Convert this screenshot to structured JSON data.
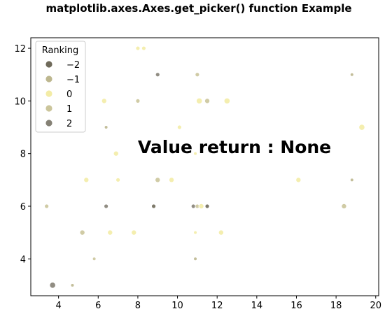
{
  "chart_data": {
    "type": "scatter",
    "title": "matplotlib.axes.Axes.get_picker() function Example",
    "annotation": "Value return : None",
    "xlabel": "",
    "ylabel": "",
    "xlim": [
      2.6,
      20.15
    ],
    "ylim": [
      2.6,
      12.4
    ],
    "x_ticks": [
      4,
      6,
      8,
      10,
      12,
      14,
      16,
      18,
      20
    ],
    "y_ticks": [
      4,
      6,
      8,
      10,
      12
    ],
    "grid": false,
    "legend": {
      "title": "Ranking",
      "placement": "top-left",
      "entries": [
        {
          "label": "−2",
          "color": "#6f6a5a"
        },
        {
          "label": "−1",
          "color": "#bdb78f"
        },
        {
          "label": "0",
          "color": "#f3eca6"
        },
        {
          "label": "1",
          "color": "#cbc59b"
        },
        {
          "label": "2",
          "color": "#858175"
        }
      ]
    },
    "points": [
      {
        "x": 3.7,
        "y": 3.0,
        "rank": 2,
        "size": 7
      },
      {
        "x": 4.7,
        "y": 3.0,
        "rank": -1,
        "size": 4
      },
      {
        "x": 5.8,
        "y": 4.0,
        "rank": 1,
        "size": 4
      },
      {
        "x": 5.2,
        "y": 5.0,
        "rank": 1,
        "size": 6
      },
      {
        "x": 6.6,
        "y": 5.0,
        "rank": 0,
        "size": 6
      },
      {
        "x": 7.8,
        "y": 5.0,
        "rank": 0,
        "size": 6
      },
      {
        "x": 10.9,
        "y": 5.0,
        "rank": 0,
        "size": 4
      },
      {
        "x": 12.2,
        "y": 5.0,
        "rank": 0,
        "size": 6
      },
      {
        "x": 10.9,
        "y": 4.0,
        "rank": -1,
        "size": 4
      },
      {
        "x": 3.4,
        "y": 6.0,
        "rank": 1,
        "size": 5
      },
      {
        "x": 6.4,
        "y": 6.0,
        "rank": 2,
        "size": 5
      },
      {
        "x": 8.8,
        "y": 6.0,
        "rank": -2,
        "size": 5
      },
      {
        "x": 10.8,
        "y": 6.0,
        "rank": 2,
        "size": 5
      },
      {
        "x": 11.0,
        "y": 6.0,
        "rank": 1,
        "size": 5
      },
      {
        "x": 11.2,
        "y": 6.0,
        "rank": 0,
        "size": 6
      },
      {
        "x": 11.5,
        "y": 6.0,
        "rank": -2,
        "size": 5
      },
      {
        "x": 18.4,
        "y": 6.0,
        "rank": 1,
        "size": 6
      },
      {
        "x": 5.4,
        "y": 7.0,
        "rank": 0,
        "size": 6
      },
      {
        "x": 7.0,
        "y": 7.0,
        "rank": 0,
        "size": 5
      },
      {
        "x": 9.0,
        "y": 7.0,
        "rank": 1,
        "size": 6
      },
      {
        "x": 9.7,
        "y": 7.0,
        "rank": 0,
        "size": 6
      },
      {
        "x": 16.1,
        "y": 7.0,
        "rank": 0,
        "size": 6
      },
      {
        "x": 18.8,
        "y": 7.0,
        "rank": -1,
        "size": 4
      },
      {
        "x": 6.9,
        "y": 8.0,
        "rank": 0,
        "size": 6
      },
      {
        "x": 10.9,
        "y": 8.0,
        "rank": 0,
        "size": 4
      },
      {
        "x": 6.4,
        "y": 9.0,
        "rank": -1,
        "size": 4
      },
      {
        "x": 10.1,
        "y": 9.0,
        "rank": 0,
        "size": 5
      },
      {
        "x": 19.3,
        "y": 9.0,
        "rank": 0,
        "size": 7
      },
      {
        "x": 6.3,
        "y": 10.0,
        "rank": 0,
        "size": 6
      },
      {
        "x": 8.0,
        "y": 10.0,
        "rank": 1,
        "size": 5
      },
      {
        "x": 11.1,
        "y": 10.0,
        "rank": 0,
        "size": 7
      },
      {
        "x": 11.5,
        "y": 10.0,
        "rank": 1,
        "size": 6
      },
      {
        "x": 12.5,
        "y": 10.0,
        "rank": 0,
        "size": 7
      },
      {
        "x": 9.0,
        "y": 11.0,
        "rank": 2,
        "size": 5
      },
      {
        "x": 11.0,
        "y": 11.0,
        "rank": 1,
        "size": 5
      },
      {
        "x": 18.8,
        "y": 11.0,
        "rank": -1,
        "size": 4
      },
      {
        "x": 8.0,
        "y": 12.0,
        "rank": 0,
        "size": 5
      },
      {
        "x": 8.3,
        "y": 12.0,
        "rank": 0,
        "size": 5
      }
    ]
  }
}
